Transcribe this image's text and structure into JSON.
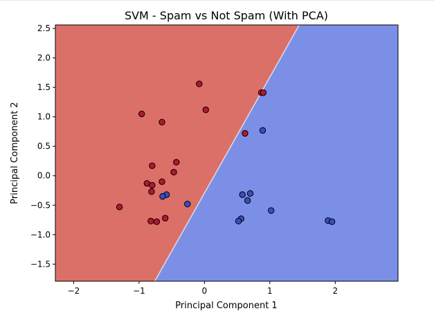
{
  "chart_data": {
    "type": "scatter",
    "title": "SVM - Spam vs Not Spam (With PCA)",
    "xlabel": "Principal Component 1",
    "ylabel": "Principal Component 2",
    "xlim": [
      -2.28,
      2.96
    ],
    "ylim": [
      -1.79,
      2.56
    ],
    "xticks": [
      -2,
      -1,
      0,
      1,
      2
    ],
    "yticks": [
      -1.5,
      -1.0,
      -0.5,
      0.0,
      0.5,
      1.0,
      1.5,
      2.0,
      2.5
    ],
    "xtick_labels": [
      "−2",
      "−1",
      "0",
      "1",
      "2"
    ],
    "ytick_labels": [
      "−1.5",
      "−1.0",
      "−0.5",
      "0.0",
      "0.5",
      "1.0",
      "1.5",
      "2.0",
      "2.5"
    ],
    "grid": false,
    "decision_boundary": [
      [
        -0.76,
        -1.79
      ],
      [
        1.45,
        2.56
      ]
    ],
    "regions": [
      {
        "side": "left",
        "color": "#db7069"
      },
      {
        "side": "right",
        "color": "#7b8fe6"
      }
    ],
    "series": [
      {
        "color": "#b2182b",
        "points": [
          [
            -0.08,
            1.56
          ],
          [
            -0.96,
            1.05
          ],
          [
            0.02,
            1.12
          ],
          [
            -0.65,
            0.91
          ],
          [
            0.87,
            1.41
          ],
          [
            0.9,
            1.41
          ],
          [
            0.62,
            0.72
          ],
          [
            -0.8,
            0.17
          ],
          [
            -0.43,
            0.23
          ],
          [
            -0.47,
            0.06
          ],
          [
            -0.65,
            -0.1
          ],
          [
            -0.88,
            -0.13
          ],
          [
            -0.8,
            -0.16
          ],
          [
            -0.81,
            -0.27
          ],
          [
            -1.3,
            -0.53
          ],
          [
            -0.6,
            -0.72
          ],
          [
            -0.73,
            -0.78
          ],
          [
            -0.82,
            -0.77
          ]
        ]
      },
      {
        "color": "#3b4cc0",
        "points": [
          [
            0.89,
            0.77
          ],
          [
            -0.58,
            -0.32
          ],
          [
            -0.64,
            -0.35
          ],
          [
            -0.26,
            -0.48
          ],
          [
            0.58,
            -0.32
          ],
          [
            0.7,
            -0.3
          ],
          [
            0.66,
            -0.42
          ],
          [
            1.02,
            -0.59
          ],
          [
            0.56,
            -0.73
          ],
          [
            0.52,
            -0.77
          ],
          [
            1.89,
            -0.76
          ],
          [
            1.95,
            -0.78
          ]
        ]
      }
    ]
  }
}
